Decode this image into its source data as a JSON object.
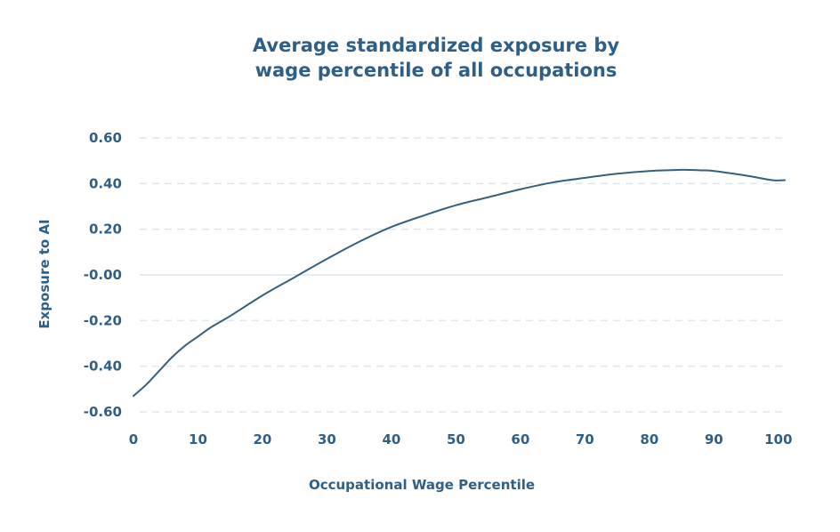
{
  "colors": {
    "text": "#2f5f86",
    "line": "#35607f",
    "grid": "#dde8f1",
    "zero_line": "#e4edf4"
  },
  "chart_data": {
    "type": "line",
    "title_lines": [
      "Average standardized exposure by",
      "wage percentile of all occupations"
    ],
    "xlabel": "Occupational Wage Percentile",
    "ylabel": "Exposure to AI",
    "xlim": [
      0,
      101
    ],
    "ylim": [
      -0.6,
      0.6
    ],
    "x_ticks": [
      0,
      10,
      20,
      30,
      40,
      50,
      60,
      70,
      80,
      90,
      100
    ],
    "y_ticks": [
      0.6,
      0.4,
      0.2,
      0.0,
      -0.2,
      -0.4,
      -0.6
    ],
    "y_tick_labels": [
      "0.60",
      "0.40",
      "0.20",
      "-0.00",
      "-0.20",
      "-0.40",
      "-0.60"
    ],
    "grid": "horizontal dashed",
    "legend": "none",
    "series": [
      {
        "x": [
          0,
          2,
          4,
          6,
          8,
          10,
          12,
          15,
          20,
          25,
          30,
          35,
          40,
          45,
          50,
          55,
          60,
          65,
          70,
          75,
          80,
          85,
          88,
          90,
          95,
          99,
          101
        ],
        "y": [
          -0.53,
          -0.48,
          -0.42,
          -0.36,
          -0.31,
          -0.27,
          -0.23,
          -0.18,
          -0.09,
          -0.01,
          0.07,
          0.145,
          0.21,
          0.26,
          0.305,
          0.34,
          0.375,
          0.405,
          0.425,
          0.443,
          0.455,
          0.46,
          0.458,
          0.455,
          0.435,
          0.415,
          0.415
        ]
      }
    ]
  }
}
